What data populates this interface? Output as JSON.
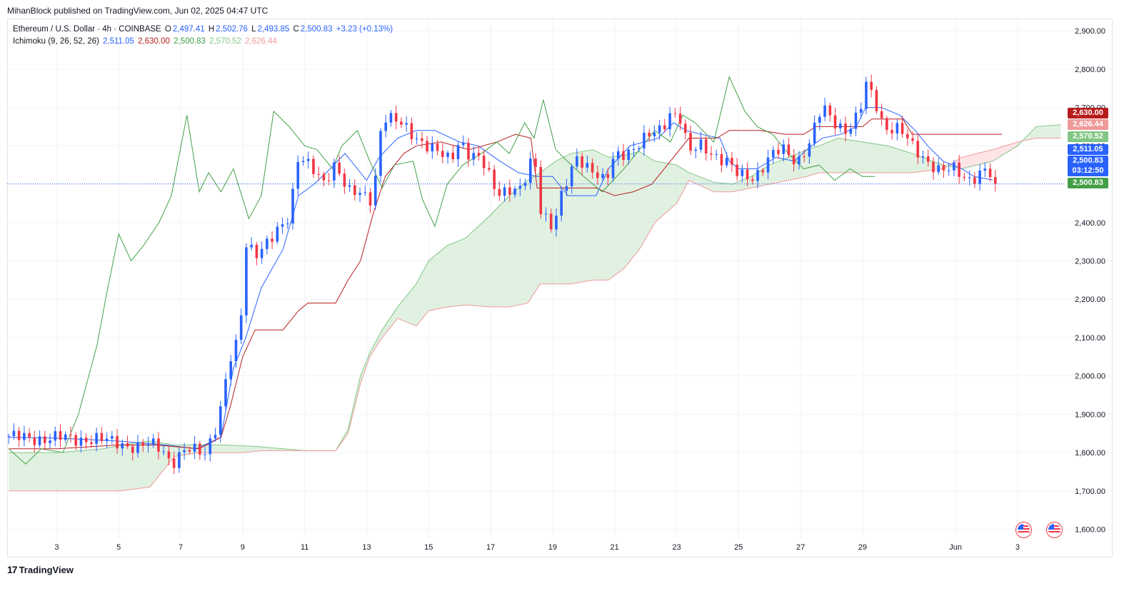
{
  "publisher_line": "MihanBlock published on TradingView.com, Jun 02, 2025 04:47 UTC",
  "legend": {
    "symbol": "Ethereum / U.S. Dollar · 4h · COINBASE",
    "o_label": "O",
    "o": "2,497.41",
    "h_label": "H",
    "h": "2,502.76",
    "l_label": "L",
    "l": "2,493.85",
    "c_label": "C",
    "c": "2,500.83",
    "change": "+3.23 (+0.13%)",
    "indicator": "Ichimoku (9, 26, 52, 26)",
    "tenkan": "2,511.05",
    "kijun": "2,630.00",
    "chikou": "2,500.83",
    "span_a": "2,570.52",
    "span_b": "2,626.44"
  },
  "price_tags": {
    "kijun": {
      "text": "2,630.00",
      "value": 2630.0,
      "color": "#b71c1c"
    },
    "span_b": {
      "text": "2,626.44",
      "value": 2626.44,
      "color": "#ef9a9a"
    },
    "span_a": {
      "text": "2,570.52",
      "value": 2570.52,
      "color": "#81c784"
    },
    "tenkan": {
      "text": "2,511.05",
      "value": 2511.05,
      "color": "#2962ff"
    },
    "price": {
      "text": "2,500.83",
      "value": 2500.83,
      "color": "#2962ff"
    },
    "countdown": {
      "text": "03:12:50",
      "color": "#2962ff"
    },
    "chikou": {
      "text": "2,500.83",
      "value": 2500.83,
      "color": "#43a047"
    }
  },
  "footer_brand": "TradingView",
  "colors": {
    "up": "#2962ff",
    "down": "#f23645",
    "tenkan": "#2962ff",
    "kijun": "#b71c1c",
    "chikou": "#43a047",
    "span_a": "#81c784",
    "span_b": "#ef9a9a",
    "cloud_bull": "#c8e6c9",
    "cloud_bear": "#ffcdd2",
    "grid": "#f0f3fa"
  },
  "chart_data": {
    "type": "candlestick",
    "title": "Ethereum / U.S. Dollar · 4h · COINBASE",
    "ylim": [
      1575,
      2930
    ],
    "y_ticks": [
      1600,
      1700,
      1800,
      1900,
      2000,
      2100,
      2200,
      2300,
      2400,
      2500,
      2600,
      2700,
      2800,
      2900
    ],
    "y_tick_labels": [
      "1,600.00",
      "1,700.00",
      "1,800.00",
      "1,900.00",
      "2,000.00",
      "2,100.00",
      "2,200.00",
      "2,300.00",
      "2,400.00",
      "2,500.00",
      "2,600.00",
      "2,700.00",
      "2,800.00",
      "2,900.00"
    ],
    "x_tick_labels": [
      "3",
      "5",
      "7",
      "9",
      "11",
      "13",
      "15",
      "17",
      "19",
      "21",
      "23",
      "25",
      "27",
      "29",
      "Jun",
      "3"
    ],
    "x_tick_days": [
      3,
      5,
      7,
      9,
      11,
      13,
      15,
      17,
      19,
      21,
      23,
      25,
      27,
      29,
      32,
      34
    ],
    "x_range_days": [
      1.4,
      35.5
    ],
    "grid": true,
    "close_anchors": [
      [
        1.45,
        1843
      ],
      [
        2,
        1836
      ],
      [
        3,
        1838
      ],
      [
        4,
        1835
      ],
      [
        5,
        1828
      ],
      [
        5.6,
        1810
      ],
      [
        6,
        1822
      ],
      [
        6.4,
        1815
      ],
      [
        6.7,
        1772
      ],
      [
        7.2,
        1805
      ],
      [
        7.8,
        1805
      ],
      [
        8.2,
        1880
      ],
      [
        8.6,
        2040
      ],
      [
        8.9,
        2100
      ],
      [
        9.1,
        2350
      ],
      [
        9.5,
        2320
      ],
      [
        10,
        2360
      ],
      [
        10.5,
        2420
      ],
      [
        10.8,
        2580
      ],
      [
        11.2,
        2540
      ],
      [
        11.6,
        2500
      ],
      [
        12,
        2560
      ],
      [
        12.4,
        2480
      ],
      [
        12.8,
        2470
      ],
      [
        13.2,
        2460
      ],
      [
        13.5,
        2680
      ],
      [
        14,
        2660
      ],
      [
        14.5,
        2630
      ],
      [
        15,
        2600
      ],
      [
        15.3,
        2580
      ],
      [
        15.7,
        2560
      ],
      [
        16,
        2620
      ],
      [
        16.3,
        2580
      ],
      [
        16.7,
        2560
      ],
      [
        17.2,
        2480
      ],
      [
        17.6,
        2490
      ],
      [
        18,
        2480
      ],
      [
        18.4,
        2580
      ],
      [
        18.6,
        2440
      ],
      [
        19,
        2390
      ],
      [
        19.3,
        2470
      ],
      [
        19.8,
        2570
      ],
      [
        20.3,
        2540
      ],
      [
        20.7,
        2500
      ],
      [
        21,
        2570
      ],
      [
        21.5,
        2590
      ],
      [
        22,
        2620
      ],
      [
        22.5,
        2640
      ],
      [
        22.8,
        2690
      ],
      [
        23.1,
        2680
      ],
      [
        23.4,
        2580
      ],
      [
        23.8,
        2600
      ],
      [
        24.2,
        2580
      ],
      [
        24.6,
        2560
      ],
      [
        25,
        2520
      ],
      [
        25.5,
        2520
      ],
      [
        26,
        2570
      ],
      [
        26.4,
        2590
      ],
      [
        26.9,
        2560
      ],
      [
        27.3,
        2610
      ],
      [
        27.7,
        2700
      ],
      [
        28,
        2670
      ],
      [
        28.5,
        2640
      ],
      [
        28.9,
        2680
      ],
      [
        29.1,
        2760
      ],
      [
        29.4,
        2720
      ],
      [
        29.7,
        2650
      ],
      [
        30.2,
        2640
      ],
      [
        30.6,
        2600
      ],
      [
        31,
        2570
      ],
      [
        31.5,
        2530
      ],
      [
        32,
        2540
      ],
      [
        32.4,
        2515
      ],
      [
        32.7,
        2520
      ],
      [
        33,
        2535
      ],
      [
        33.3,
        2501
      ]
    ],
    "series": [
      {
        "name": "Tenkan-sen",
        "points": [
          [
            1.45,
            1840
          ],
          [
            3,
            1838
          ],
          [
            5,
            1830
          ],
          [
            6.5,
            1820
          ],
          [
            7.5,
            1810
          ],
          [
            8.3,
            1840
          ],
          [
            8.7,
            2020
          ],
          [
            9.1,
            2100
          ],
          [
            9.6,
            2230
          ],
          [
            10.3,
            2330
          ],
          [
            10.8,
            2470
          ],
          [
            11.3,
            2500
          ],
          [
            11.7,
            2530
          ],
          [
            12.3,
            2580
          ],
          [
            13,
            2510
          ],
          [
            13.4,
            2570
          ],
          [
            14,
            2620
          ],
          [
            14.6,
            2640
          ],
          [
            15.2,
            2640
          ],
          [
            16,
            2610
          ],
          [
            16.6,
            2600
          ],
          [
            17.3,
            2560
          ],
          [
            17.9,
            2530
          ],
          [
            18.5,
            2520
          ],
          [
            19,
            2520
          ],
          [
            19.5,
            2470
          ],
          [
            20.4,
            2470
          ],
          [
            20.8,
            2540
          ],
          [
            21.5,
            2600
          ],
          [
            22.4,
            2620
          ],
          [
            22.9,
            2660
          ],
          [
            23.3,
            2640
          ],
          [
            23.8,
            2630
          ],
          [
            24.4,
            2620
          ],
          [
            24.7,
            2560
          ],
          [
            25,
            2540
          ],
          [
            25.6,
            2540
          ],
          [
            26.2,
            2570
          ],
          [
            26.8,
            2560
          ],
          [
            27.2,
            2590
          ],
          [
            27.7,
            2620
          ],
          [
            28.3,
            2630
          ],
          [
            28.8,
            2650
          ],
          [
            29.1,
            2700
          ],
          [
            29.6,
            2700
          ],
          [
            30.2,
            2680
          ],
          [
            30.7,
            2640
          ],
          [
            31.1,
            2600
          ],
          [
            31.6,
            2560
          ],
          [
            32.2,
            2540
          ],
          [
            32.6,
            2520
          ],
          [
            33.2,
            2511
          ]
        ]
      },
      {
        "name": "Kijun-sen",
        "points": [
          [
            1.45,
            1810
          ],
          [
            3,
            1810
          ],
          [
            5,
            1820
          ],
          [
            6.2,
            1820
          ],
          [
            7.6,
            1810
          ],
          [
            8.3,
            1840
          ],
          [
            8.6,
            1920
          ],
          [
            9,
            2050
          ],
          [
            9.4,
            2120
          ],
          [
            10.3,
            2120
          ],
          [
            10.8,
            2170
          ],
          [
            11.1,
            2190
          ],
          [
            12,
            2190
          ],
          [
            12.4,
            2250
          ],
          [
            12.8,
            2300
          ],
          [
            13.2,
            2420
          ],
          [
            13.6,
            2520
          ],
          [
            14.2,
            2580
          ],
          [
            14.6,
            2600
          ],
          [
            15.4,
            2610
          ],
          [
            16.3,
            2590
          ],
          [
            17.2,
            2610
          ],
          [
            17.8,
            2630
          ],
          [
            18.3,
            2620
          ],
          [
            18.5,
            2490
          ],
          [
            19.4,
            2490
          ],
          [
            20.4,
            2490
          ],
          [
            21,
            2470
          ],
          [
            21.6,
            2480
          ],
          [
            22.2,
            2500
          ],
          [
            22.8,
            2560
          ],
          [
            23.4,
            2620
          ],
          [
            24.3,
            2620
          ],
          [
            24.7,
            2640
          ],
          [
            25.7,
            2640
          ],
          [
            26.5,
            2630
          ],
          [
            27.1,
            2630
          ],
          [
            27.5,
            2650
          ],
          [
            28.6,
            2650
          ],
          [
            29,
            2650
          ],
          [
            29.3,
            2670
          ],
          [
            30.3,
            2670
          ],
          [
            30.6,
            2630
          ],
          [
            33.5,
            2630
          ]
        ]
      },
      {
        "name": "Chikou Span",
        "points": [
          [
            1.45,
            1810
          ],
          [
            2.0,
            1770
          ],
          [
            2.5,
            1810
          ],
          [
            3.2,
            1800
          ],
          [
            3.7,
            1900
          ],
          [
            4.3,
            2080
          ],
          [
            4.6,
            2210
          ],
          [
            5,
            2370
          ],
          [
            5.4,
            2300
          ],
          [
            5.8,
            2340
          ],
          [
            6.3,
            2400
          ],
          [
            6.7,
            2470
          ],
          [
            7.2,
            2680
          ],
          [
            7.6,
            2480
          ],
          [
            7.9,
            2530
          ],
          [
            8.3,
            2480
          ],
          [
            8.7,
            2540
          ],
          [
            9.2,
            2410
          ],
          [
            9.6,
            2470
          ],
          [
            10,
            2690
          ],
          [
            10.5,
            2650
          ],
          [
            11,
            2600
          ],
          [
            11.4,
            2590
          ],
          [
            11.9,
            2540
          ],
          [
            12.2,
            2600
          ],
          [
            12.7,
            2640
          ],
          [
            13.1,
            2560
          ],
          [
            13.5,
            2490
          ],
          [
            13.9,
            2550
          ],
          [
            14.5,
            2560
          ],
          [
            14.8,
            2460
          ],
          [
            15.2,
            2390
          ],
          [
            15.6,
            2500
          ],
          [
            16.1,
            2550
          ],
          [
            16.7,
            2580
          ],
          [
            17.2,
            2610
          ],
          [
            17.6,
            2580
          ],
          [
            18.1,
            2660
          ],
          [
            18.4,
            2620
          ],
          [
            18.7,
            2720
          ],
          [
            19.1,
            2590
          ],
          [
            19.6,
            2550
          ],
          [
            20,
            2520
          ],
          [
            20.6,
            2480
          ],
          [
            21.3,
            2540
          ],
          [
            21.9,
            2600
          ],
          [
            22.3,
            2640
          ],
          [
            22.8,
            2610
          ],
          [
            23.2,
            2680
          ],
          [
            23.6,
            2660
          ],
          [
            24.2,
            2610
          ],
          [
            24.7,
            2780
          ],
          [
            25.2,
            2690
          ],
          [
            25.6,
            2650
          ],
          [
            26.1,
            2630
          ],
          [
            26.6,
            2580
          ],
          [
            27.1,
            2540
          ],
          [
            27.6,
            2550
          ],
          [
            28.1,
            2510
          ],
          [
            28.6,
            2540
          ],
          [
            29.0,
            2520
          ],
          [
            29.4,
            2520
          ]
        ]
      }
    ],
    "cloud": {
      "x": [
        1.45,
        3.0,
        4.5,
        5.0,
        5.5,
        6.0,
        6.8,
        7.6,
        8.4,
        9.0,
        9.6,
        11.0,
        12.0,
        12.4,
        12.8,
        13.1,
        13.5,
        14.0,
        14.6,
        15.0,
        15.6,
        16.2,
        17.0,
        17.6,
        18.2,
        18.6,
        19.1,
        19.6,
        20.3,
        20.8,
        21.3,
        21.8,
        22.3,
        23.0,
        23.4,
        24.2,
        24.8,
        25.4,
        26.0,
        26.6,
        27.2,
        27.6,
        28.2,
        29.0,
        29.8,
        30.6,
        31.6,
        32.2,
        33.2,
        34.0,
        34.6,
        35.4
      ],
      "span_a": [
        1800,
        1800,
        1810,
        1818,
        1825,
        1830,
        1820,
        1820,
        1820,
        1818,
        1815,
        1805,
        1805,
        1860,
        2000,
        2060,
        2120,
        2180,
        2240,
        2300,
        2340,
        2360,
        2420,
        2470,
        2510,
        2530,
        2560,
        2580,
        2590,
        2570,
        2575,
        2585,
        2560,
        2550,
        2530,
        2505,
        2500,
        2520,
        2550,
        2570,
        2590,
        2600,
        2620,
        2610,
        2600,
        2580,
        2550,
        2540,
        2560,
        2600,
        2650,
        2655
      ],
      "span_b": [
        1700,
        1700,
        1700,
        1700,
        1705,
        1710,
        1790,
        1800,
        1800,
        1800,
        1805,
        1805,
        1805,
        1850,
        1980,
        2050,
        2100,
        2150,
        2130,
        2170,
        2180,
        2185,
        2180,
        2180,
        2190,
        2240,
        2240,
        2240,
        2250,
        2250,
        2280,
        2330,
        2400,
        2450,
        2510,
        2480,
        2480,
        2490,
        2500,
        2510,
        2520,
        2530,
        2530,
        2530,
        2530,
        2530,
        2540,
        2570,
        2590,
        2610,
        2620,
        2620
      ]
    },
    "last_price": 2500.83
  }
}
